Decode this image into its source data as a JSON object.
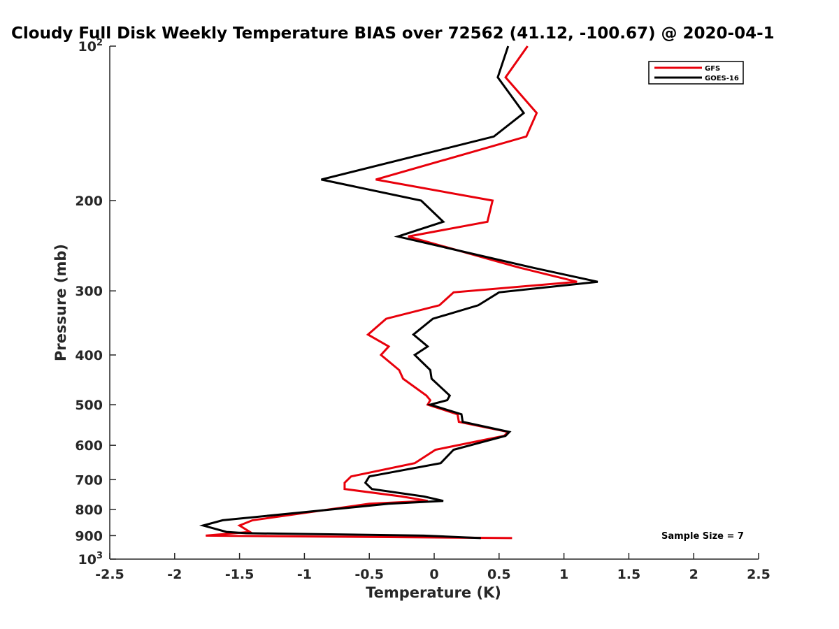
{
  "chart_data": {
    "type": "line",
    "title": "Cloudy Full Disk Weekly Temperature BIAS over 72562 (41.12, -100.67) @ 2020-04-1",
    "xlabel": "Temperature (K)",
    "ylabel": "Pressure (mb)",
    "xlim": [
      -2.5,
      2.5
    ],
    "ylim": [
      100,
      1000
    ],
    "y_scale": "log",
    "y_reversed": true,
    "grid": false,
    "legend_position": "top-right",
    "x_ticks": [
      {
        "value": -2.5,
        "label": "-2.5"
      },
      {
        "value": -2,
        "label": "-2"
      },
      {
        "value": -1.5,
        "label": "-1.5"
      },
      {
        "value": -1,
        "label": "-1"
      },
      {
        "value": -0.5,
        "label": "-0.5"
      },
      {
        "value": 0,
        "label": "0"
      },
      {
        "value": 0.5,
        "label": "0.5"
      },
      {
        "value": 1,
        "label": "1"
      },
      {
        "value": 1.5,
        "label": "1.5"
      },
      {
        "value": 2,
        "label": "2"
      },
      {
        "value": 2.5,
        "label": "2.5"
      }
    ],
    "y_ticks": [
      {
        "value": 100,
        "base": "10",
        "exp": "2"
      },
      {
        "value": 200,
        "label": "200"
      },
      {
        "value": 300,
        "label": "300"
      },
      {
        "value": 400,
        "label": "400"
      },
      {
        "value": 500,
        "label": "500"
      },
      {
        "value": 600,
        "label": "600"
      },
      {
        "value": 700,
        "label": "700"
      },
      {
        "value": 800,
        "label": "800"
      },
      {
        "value": 900,
        "label": "900"
      },
      {
        "value": 1000,
        "base": "10",
        "exp": "3"
      }
    ],
    "series": [
      {
        "name": "GFS",
        "color": "#e8000b",
        "points": [
          [
            0.72,
            100
          ],
          [
            0.55,
            115
          ],
          [
            0.79,
            135
          ],
          [
            0.71,
            150
          ],
          [
            -0.45,
            182
          ],
          [
            0.45,
            200
          ],
          [
            0.41,
            220
          ],
          [
            -0.2,
            235
          ],
          [
            0.65,
            270
          ],
          [
            1.1,
            288
          ],
          [
            0.15,
            302
          ],
          [
            0.04,
            320
          ],
          [
            -0.37,
            340
          ],
          [
            -0.51,
            365
          ],
          [
            -0.35,
            385
          ],
          [
            -0.41,
            400
          ],
          [
            -0.27,
            428
          ],
          [
            -0.24,
            445
          ],
          [
            -0.06,
            480
          ],
          [
            -0.03,
            490
          ],
          [
            -0.05,
            500
          ],
          [
            0.18,
            522
          ],
          [
            0.19,
            540
          ],
          [
            0.57,
            565
          ],
          [
            0.54,
            575
          ],
          [
            0.01,
            612
          ],
          [
            -0.15,
            650
          ],
          [
            -0.64,
            690
          ],
          [
            -0.69,
            710
          ],
          [
            -0.69,
            730
          ],
          [
            -0.25,
            755
          ],
          [
            -0.05,
            770
          ],
          [
            -0.5,
            780
          ],
          [
            -1.4,
            840
          ],
          [
            -1.5,
            860
          ],
          [
            -1.42,
            885
          ],
          [
            -1.76,
            900
          ],
          [
            0.6,
            910
          ]
        ]
      },
      {
        "name": "GOES-16",
        "color": "#000000",
        "points": [
          [
            0.57,
            100
          ],
          [
            0.49,
            115
          ],
          [
            0.69,
            135
          ],
          [
            0.46,
            150
          ],
          [
            -0.87,
            182
          ],
          [
            -0.1,
            200
          ],
          [
            0.07,
            220
          ],
          [
            -0.28,
            235
          ],
          [
            0.75,
            270
          ],
          [
            1.26,
            288
          ],
          [
            0.5,
            302
          ],
          [
            0.34,
            320
          ],
          [
            -0.01,
            340
          ],
          [
            -0.16,
            365
          ],
          [
            -0.05,
            385
          ],
          [
            -0.15,
            400
          ],
          [
            -0.03,
            428
          ],
          [
            -0.02,
            445
          ],
          [
            0.12,
            480
          ],
          [
            0.1,
            490
          ],
          [
            -0.03,
            500
          ],
          [
            0.21,
            522
          ],
          [
            0.22,
            540
          ],
          [
            0.58,
            565
          ],
          [
            0.55,
            575
          ],
          [
            0.15,
            612
          ],
          [
            0.05,
            650
          ],
          [
            -0.5,
            690
          ],
          [
            -0.53,
            710
          ],
          [
            -0.48,
            730
          ],
          [
            -0.08,
            755
          ],
          [
            0.07,
            770
          ],
          [
            -0.35,
            780
          ],
          [
            -1.63,
            840
          ],
          [
            -1.78,
            860
          ],
          [
            -1.6,
            885
          ],
          [
            -1.45,
            890
          ],
          [
            -0.08,
            900
          ],
          [
            0.36,
            910
          ]
        ]
      }
    ],
    "annotations": [
      "Sample Size = 7"
    ]
  }
}
